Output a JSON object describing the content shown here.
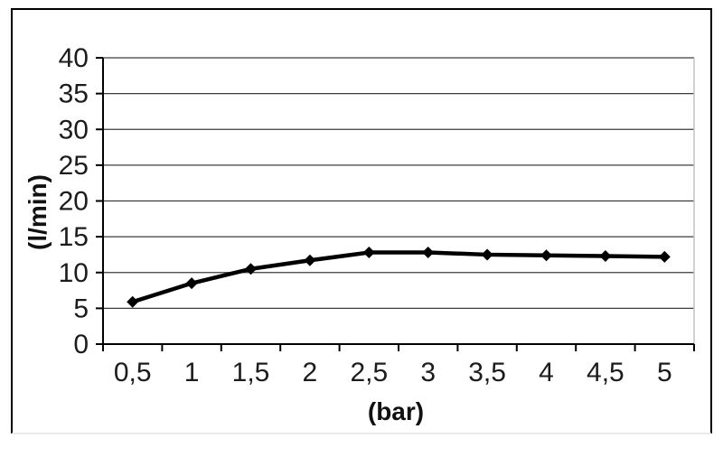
{
  "chart_data": {
    "type": "line",
    "categories": [
      "0,5",
      "1",
      "1,5",
      "2",
      "2,5",
      "3",
      "3,5",
      "4",
      "4,5",
      "5"
    ],
    "values": [
      5.9,
      8.5,
      10.5,
      11.7,
      12.8,
      12.8,
      12.5,
      12.4,
      12.3,
      12.2
    ],
    "title": "",
    "xlabel": "(bar)",
    "ylabel": "(l/min)",
    "ylim": [
      0,
      40
    ],
    "yticks": [
      0,
      5,
      10,
      15,
      20,
      25,
      30,
      35,
      40
    ],
    "grid": true,
    "legend_position": "none",
    "marker": "diamond",
    "line_color": "#000000",
    "grid_color": "#3c3c3c",
    "axis_color": "#000000",
    "plot_border_color": "#c0c0c0",
    "frame_border_color": "#000000",
    "text_color": "#1c1c1c",
    "background": "#ffffff"
  }
}
